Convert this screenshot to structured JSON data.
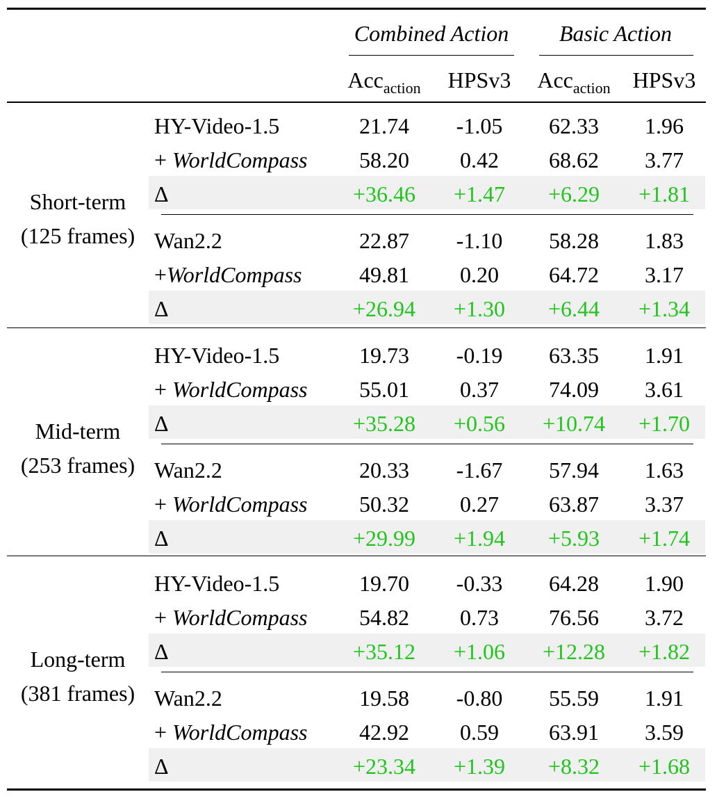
{
  "header": {
    "groups": [
      "Combined Action",
      "Basic Action"
    ],
    "metric_main": [
      "Acc",
      "HPSv3",
      "Acc",
      "HPSv3"
    ],
    "metric_sub": [
      "action",
      "",
      "action",
      ""
    ]
  },
  "sections": [
    {
      "label": "Short-term",
      "sublabel": "(125 frames)",
      "blocks": [
        {
          "rows": [
            {
              "model": "HY-Video-1.5",
              "plus": "",
              "values": [
                "21.74",
                "-1.05",
                "62.33",
                "1.96"
              ]
            },
            {
              "model": "WorldCompass",
              "plus": "+ ",
              "values": [
                "58.20",
                "0.42",
                "68.62",
                "3.77"
              ]
            },
            {
              "model": "Δ",
              "plus": "",
              "delta": true,
              "values": [
                "+36.46",
                "+1.47",
                "+6.29",
                "+1.81"
              ]
            }
          ]
        },
        {
          "rows": [
            {
              "model": "Wan2.2",
              "plus": "",
              "values": [
                "22.87",
                "-1.10",
                "58.28",
                "1.83"
              ]
            },
            {
              "model": "WorldCompass",
              "plus": "+",
              "values": [
                "49.81",
                "0.20",
                "64.72",
                "3.17"
              ]
            },
            {
              "model": "Δ",
              "plus": "",
              "delta": true,
              "values": [
                "+26.94",
                "+1.30",
                "+6.44",
                "+1.34"
              ]
            }
          ]
        }
      ]
    },
    {
      "label": "Mid-term",
      "sublabel": "(253 frames)",
      "blocks": [
        {
          "rows": [
            {
              "model": "HY-Video-1.5",
              "plus": "",
              "values": [
                "19.73",
                "-0.19",
                "63.35",
                "1.91"
              ]
            },
            {
              "model": "WorldCompass",
              "plus": "+ ",
              "values": [
                "55.01",
                "0.37",
                "74.09",
                "3.61"
              ]
            },
            {
              "model": "Δ",
              "plus": "",
              "delta": true,
              "values": [
                "+35.28",
                "+0.56",
                "+10.74",
                "+1.70"
              ]
            }
          ]
        },
        {
          "rows": [
            {
              "model": "Wan2.2",
              "plus": "",
              "values": [
                "20.33",
                "-1.67",
                "57.94",
                "1.63"
              ]
            },
            {
              "model": "WorldCompass",
              "plus": "+ ",
              "values": [
                "50.32",
                "0.27",
                "63.87",
                "3.37"
              ]
            },
            {
              "model": "Δ",
              "plus": "",
              "delta": true,
              "values": [
                "+29.99",
                "+1.94",
                "+5.93",
                "+1.74"
              ]
            }
          ]
        }
      ]
    },
    {
      "label": "Long-term",
      "sublabel": "(381 frames)",
      "blocks": [
        {
          "rows": [
            {
              "model": "HY-Video-1.5",
              "plus": "",
              "values": [
                "19.70",
                "-0.33",
                "64.28",
                "1.90"
              ]
            },
            {
              "model": "WorldCompass",
              "plus": "+ ",
              "values": [
                "54.82",
                "0.73",
                "76.56",
                "3.72"
              ]
            },
            {
              "model": "Δ",
              "plus": "",
              "delta": true,
              "values": [
                "+35.12",
                "+1.06",
                "+12.28",
                "+1.82"
              ]
            }
          ]
        },
        {
          "rows": [
            {
              "model": "Wan2.2",
              "plus": "",
              "values": [
                "19.58",
                "-0.80",
                "55.59",
                "1.91"
              ]
            },
            {
              "model": "WorldCompass",
              "plus": "+ ",
              "values": [
                "42.92",
                "0.59",
                "63.91",
                "3.59"
              ]
            },
            {
              "model": "Δ",
              "plus": "",
              "delta": true,
              "values": [
                "+23.34",
                "+1.39",
                "+8.32",
                "+1.68"
              ]
            }
          ]
        }
      ]
    }
  ],
  "colors": {
    "delta": "#22c41e",
    "band": "#f0f0f0"
  }
}
